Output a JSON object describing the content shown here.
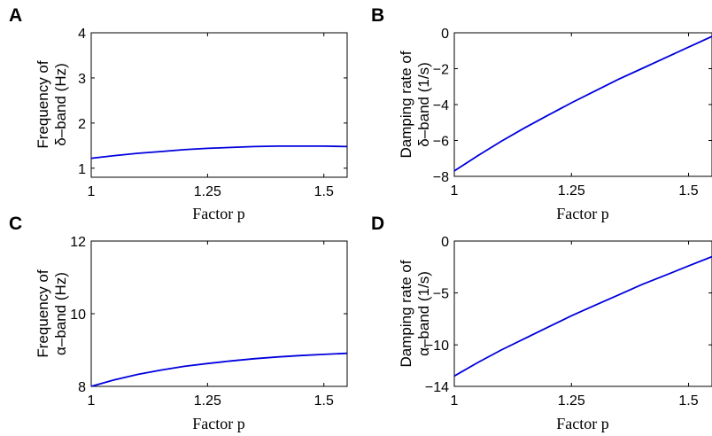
{
  "chart_data": [
    {
      "panel": "A",
      "type": "line",
      "xlabel": "Factor p",
      "ylabel": [
        "Frequency of",
        "δ–band (Hz)"
      ],
      "xlim": [
        1,
        1.55
      ],
      "ylim": [
        0.8,
        4
      ],
      "xticks": [
        1,
        1.25,
        1.5
      ],
      "xtick_labels": [
        "1",
        "1.25",
        "1.5"
      ],
      "yticks": [
        1,
        2,
        3,
        4
      ],
      "ytick_labels": [
        "1",
        "2",
        "3",
        "4"
      ],
      "series": [
        {
          "color": "#0000dd",
          "x": [
            1.0,
            1.05,
            1.1,
            1.15,
            1.2,
            1.25,
            1.3,
            1.35,
            1.4,
            1.45,
            1.5,
            1.55
          ],
          "y": [
            1.22,
            1.28,
            1.33,
            1.37,
            1.41,
            1.44,
            1.46,
            1.48,
            1.49,
            1.49,
            1.49,
            1.48
          ]
        }
      ]
    },
    {
      "panel": "B",
      "type": "line",
      "xlabel": "Factor p",
      "ylabel": [
        "Damping rate of",
        "δ–band (1/s)"
      ],
      "xlim": [
        1,
        1.55
      ],
      "ylim": [
        -8,
        0
      ],
      "xticks": [
        1,
        1.25,
        1.5
      ],
      "xtick_labels": [
        "1",
        "1.25",
        "1.5"
      ],
      "yticks": [
        -8,
        -6,
        -4,
        -2,
        0
      ],
      "ytick_labels": [
        "−8",
        "−6",
        "−4",
        "−2",
        "0"
      ],
      "series": [
        {
          "color": "#0000dd",
          "x": [
            1.0,
            1.05,
            1.1,
            1.15,
            1.2,
            1.25,
            1.3,
            1.35,
            1.4,
            1.45,
            1.5,
            1.55
          ],
          "y": [
            -7.7,
            -6.85,
            -6.05,
            -5.3,
            -4.6,
            -3.9,
            -3.25,
            -2.6,
            -2.0,
            -1.4,
            -0.8,
            -0.2
          ]
        }
      ]
    },
    {
      "panel": "C",
      "type": "line",
      "xlabel": "Factor p",
      "ylabel": [
        "Frequency of",
        "α–band (Hz)"
      ],
      "xlim": [
        1,
        1.55
      ],
      "ylim": [
        8,
        12
      ],
      "xticks": [
        1,
        1.25,
        1.5
      ],
      "xtick_labels": [
        "1",
        "1.25",
        "1.5"
      ],
      "yticks": [
        8,
        10,
        12
      ],
      "ytick_labels": [
        "8",
        "10",
        "12"
      ],
      "series": [
        {
          "color": "#0000dd",
          "x": [
            1.0,
            1.05,
            1.1,
            1.15,
            1.2,
            1.25,
            1.3,
            1.35,
            1.4,
            1.45,
            1.5,
            1.55
          ],
          "y": [
            8.0,
            8.18,
            8.33,
            8.45,
            8.55,
            8.63,
            8.7,
            8.76,
            8.81,
            8.85,
            8.88,
            8.91
          ]
        }
      ]
    },
    {
      "panel": "D",
      "type": "line",
      "xlabel": "Factor p",
      "ylabel": [
        "Damping rate of",
        "α–band (1/s)"
      ],
      "xlim": [
        1,
        1.55
      ],
      "ylim": [
        -14,
        0
      ],
      "xticks": [
        1,
        1.25,
        1.5
      ],
      "xtick_labels": [
        "1",
        "1.25",
        "1.5"
      ],
      "yticks": [
        -14,
        -10,
        -5,
        0
      ],
      "ytick_labels": [
        "−14",
        "−10",
        "−5",
        "0"
      ],
      "series": [
        {
          "color": "#0000dd",
          "x": [
            1.0,
            1.05,
            1.1,
            1.15,
            1.2,
            1.25,
            1.3,
            1.35,
            1.4,
            1.45,
            1.5,
            1.55
          ],
          "y": [
            -13.0,
            -11.7,
            -10.5,
            -9.4,
            -8.3,
            -7.2,
            -6.2,
            -5.2,
            -4.2,
            -3.3,
            -2.4,
            -1.5
          ]
        }
      ]
    }
  ]
}
